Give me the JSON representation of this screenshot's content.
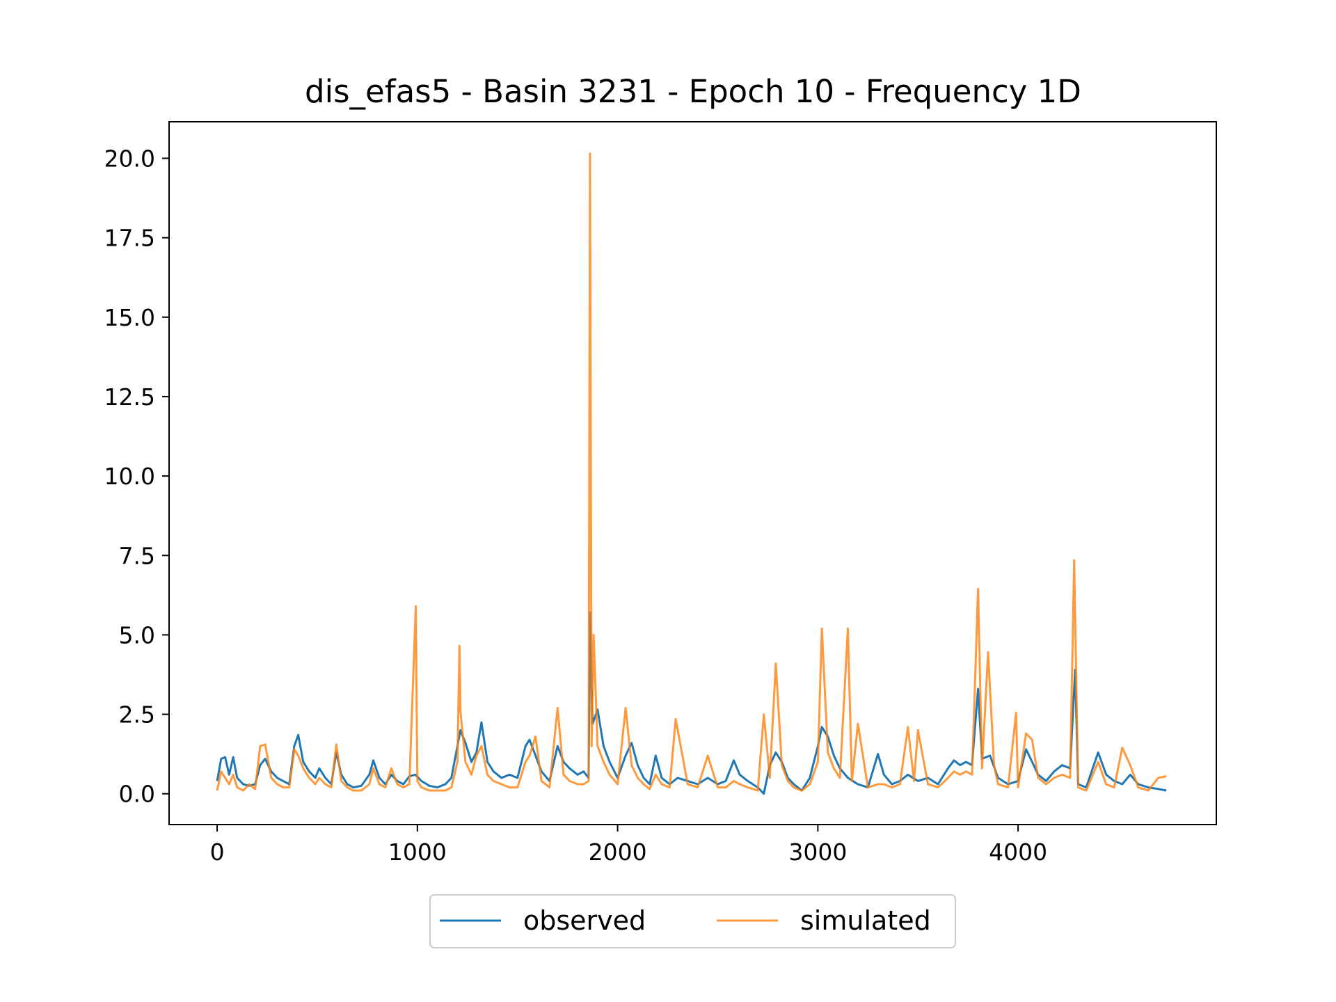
{
  "chart_data": {
    "type": "line",
    "title": "dis_efas5 - Basin 3231 - Epoch 10 - Frequency 1D",
    "xlabel": "",
    "ylabel": "",
    "xlim": [
      -240,
      4990
    ],
    "ylim": [
      -0.97,
      21.15
    ],
    "xticks": [
      0,
      1000,
      2000,
      3000,
      4000
    ],
    "xtick_labels": [
      "0",
      "1000",
      "2000",
      "3000",
      "4000"
    ],
    "yticks": [
      0,
      2.5,
      5,
      7.5,
      10,
      12.5,
      15,
      17.5,
      20
    ],
    "ytick_labels": [
      "0.0",
      "2.5",
      "5.0",
      "7.5",
      "10.0",
      "12.5",
      "15.0",
      "17.5",
      "20.0"
    ],
    "grid": false,
    "legend": {
      "placement": "bottom-center-outside",
      "columns": 2
    },
    "series": [
      {
        "name": "observed",
        "color": "#1f77b4",
        "points": [
          [
            0,
            0.4
          ],
          [
            20,
            1.1
          ],
          [
            40,
            1.15
          ],
          [
            60,
            0.6
          ],
          [
            80,
            1.15
          ],
          [
            100,
            0.5
          ],
          [
            130,
            0.3
          ],
          [
            160,
            0.25
          ],
          [
            190,
            0.3
          ],
          [
            215,
            0.9
          ],
          [
            240,
            1.1
          ],
          [
            270,
            0.7
          ],
          [
            300,
            0.5
          ],
          [
            330,
            0.4
          ],
          [
            360,
            0.3
          ],
          [
            385,
            1.5
          ],
          [
            405,
            1.85
          ],
          [
            430,
            1.0
          ],
          [
            460,
            0.7
          ],
          [
            490,
            0.5
          ],
          [
            510,
            0.8
          ],
          [
            540,
            0.5
          ],
          [
            570,
            0.3
          ],
          [
            595,
            1.3
          ],
          [
            620,
            0.6
          ],
          [
            650,
            0.3
          ],
          [
            680,
            0.2
          ],
          [
            720,
            0.25
          ],
          [
            760,
            0.6
          ],
          [
            780,
            1.05
          ],
          [
            810,
            0.5
          ],
          [
            840,
            0.3
          ],
          [
            870,
            0.6
          ],
          [
            900,
            0.4
          ],
          [
            930,
            0.3
          ],
          [
            960,
            0.55
          ],
          [
            990,
            0.6
          ],
          [
            1020,
            0.4
          ],
          [
            1060,
            0.25
          ],
          [
            1100,
            0.2
          ],
          [
            1140,
            0.3
          ],
          [
            1170,
            0.5
          ],
          [
            1200,
            1.5
          ],
          [
            1215,
            2.0
          ],
          [
            1240,
            1.6
          ],
          [
            1270,
            1.0
          ],
          [
            1295,
            1.3
          ],
          [
            1320,
            2.25
          ],
          [
            1350,
            1.0
          ],
          [
            1380,
            0.7
          ],
          [
            1420,
            0.5
          ],
          [
            1460,
            0.6
          ],
          [
            1500,
            0.5
          ],
          [
            1540,
            1.5
          ],
          [
            1560,
            1.7
          ],
          [
            1590,
            1.2
          ],
          [
            1620,
            0.7
          ],
          [
            1660,
            0.4
          ],
          [
            1700,
            1.5
          ],
          [
            1730,
            1.0
          ],
          [
            1760,
            0.8
          ],
          [
            1800,
            0.6
          ],
          [
            1830,
            0.7
          ],
          [
            1855,
            0.5
          ],
          [
            1862,
            5.7
          ],
          [
            1875,
            2.2
          ],
          [
            1900,
            2.65
          ],
          [
            1930,
            1.5
          ],
          [
            1960,
            1.0
          ],
          [
            2000,
            0.5
          ],
          [
            2040,
            1.2
          ],
          [
            2070,
            1.6
          ],
          [
            2100,
            0.9
          ],
          [
            2130,
            0.5
          ],
          [
            2160,
            0.3
          ],
          [
            2190,
            1.2
          ],
          [
            2220,
            0.5
          ],
          [
            2260,
            0.3
          ],
          [
            2300,
            0.5
          ],
          [
            2350,
            0.4
          ],
          [
            2400,
            0.3
          ],
          [
            2450,
            0.5
          ],
          [
            2500,
            0.3
          ],
          [
            2540,
            0.4
          ],
          [
            2580,
            1.05
          ],
          [
            2610,
            0.6
          ],
          [
            2650,
            0.4
          ],
          [
            2700,
            0.2
          ],
          [
            2730,
            0.0
          ],
          [
            2760,
            0.9
          ],
          [
            2790,
            1.3
          ],
          [
            2820,
            1.0
          ],
          [
            2850,
            0.5
          ],
          [
            2880,
            0.3
          ],
          [
            2920,
            0.1
          ],
          [
            2960,
            0.5
          ],
          [
            3000,
            1.5
          ],
          [
            3020,
            2.1
          ],
          [
            3050,
            1.8
          ],
          [
            3080,
            1.2
          ],
          [
            3110,
            0.8
          ],
          [
            3150,
            0.5
          ],
          [
            3200,
            0.3
          ],
          [
            3250,
            0.2
          ],
          [
            3300,
            1.25
          ],
          [
            3330,
            0.6
          ],
          [
            3370,
            0.3
          ],
          [
            3410,
            0.4
          ],
          [
            3450,
            0.6
          ],
          [
            3500,
            0.4
          ],
          [
            3550,
            0.5
          ],
          [
            3600,
            0.3
          ],
          [
            3650,
            0.8
          ],
          [
            3680,
            1.05
          ],
          [
            3710,
            0.9
          ],
          [
            3740,
            1.0
          ],
          [
            3770,
            0.9
          ],
          [
            3800,
            3.3
          ],
          [
            3820,
            1.1
          ],
          [
            3860,
            1.2
          ],
          [
            3900,
            0.5
          ],
          [
            3950,
            0.3
          ],
          [
            4000,
            0.4
          ],
          [
            4040,
            1.4
          ],
          [
            4070,
            1.0
          ],
          [
            4100,
            0.6
          ],
          [
            4140,
            0.4
          ],
          [
            4180,
            0.7
          ],
          [
            4220,
            0.9
          ],
          [
            4260,
            0.8
          ],
          [
            4285,
            3.9
          ],
          [
            4300,
            0.3
          ],
          [
            4340,
            0.2
          ],
          [
            4400,
            1.3
          ],
          [
            4440,
            0.6
          ],
          [
            4480,
            0.4
          ],
          [
            4520,
            0.3
          ],
          [
            4560,
            0.6
          ],
          [
            4600,
            0.3
          ],
          [
            4650,
            0.2
          ],
          [
            4700,
            0.15
          ],
          [
            4740,
            0.1
          ]
        ]
      },
      {
        "name": "simulated",
        "color": "#ff7f0e",
        "points": [
          [
            0,
            0.1
          ],
          [
            20,
            0.7
          ],
          [
            40,
            0.5
          ],
          [
            60,
            0.3
          ],
          [
            80,
            0.6
          ],
          [
            100,
            0.2
          ],
          [
            130,
            0.1
          ],
          [
            160,
            0.3
          ],
          [
            190,
            0.15
          ],
          [
            215,
            1.5
          ],
          [
            240,
            1.55
          ],
          [
            270,
            0.5
          ],
          [
            300,
            0.3
          ],
          [
            330,
            0.2
          ],
          [
            360,
            0.2
          ],
          [
            385,
            1.4
          ],
          [
            405,
            1.2
          ],
          [
            430,
            0.8
          ],
          [
            460,
            0.5
          ],
          [
            490,
            0.3
          ],
          [
            510,
            0.5
          ],
          [
            540,
            0.3
          ],
          [
            570,
            0.2
          ],
          [
            595,
            1.55
          ],
          [
            620,
            0.4
          ],
          [
            650,
            0.2
          ],
          [
            680,
            0.1
          ],
          [
            720,
            0.1
          ],
          [
            760,
            0.3
          ],
          [
            780,
            0.8
          ],
          [
            810,
            0.3
          ],
          [
            840,
            0.2
          ],
          [
            870,
            0.8
          ],
          [
            900,
            0.3
          ],
          [
            930,
            0.2
          ],
          [
            960,
            0.3
          ],
          [
            992,
            5.9
          ],
          [
            1000,
            0.4
          ],
          [
            1020,
            0.2
          ],
          [
            1060,
            0.1
          ],
          [
            1100,
            0.1
          ],
          [
            1140,
            0.1
          ],
          [
            1170,
            0.2
          ],
          [
            1200,
            1.0
          ],
          [
            1210,
            4.65
          ],
          [
            1215,
            2.6
          ],
          [
            1240,
            1.0
          ],
          [
            1270,
            0.6
          ],
          [
            1295,
            1.2
          ],
          [
            1320,
            1.5
          ],
          [
            1350,
            0.6
          ],
          [
            1380,
            0.4
          ],
          [
            1420,
            0.3
          ],
          [
            1460,
            0.2
          ],
          [
            1500,
            0.2
          ],
          [
            1540,
            1.0
          ],
          [
            1560,
            1.2
          ],
          [
            1590,
            1.8
          ],
          [
            1620,
            0.4
          ],
          [
            1660,
            0.2
          ],
          [
            1700,
            2.7
          ],
          [
            1730,
            0.6
          ],
          [
            1760,
            0.4
          ],
          [
            1800,
            0.3
          ],
          [
            1830,
            0.3
          ],
          [
            1855,
            0.4
          ],
          [
            1862,
            20.15
          ],
          [
            1870,
            1.5
          ],
          [
            1880,
            5.0
          ],
          [
            1900,
            1.5
          ],
          [
            1930,
            1.0
          ],
          [
            1960,
            0.6
          ],
          [
            2000,
            0.3
          ],
          [
            2040,
            2.7
          ],
          [
            2070,
            0.9
          ],
          [
            2100,
            0.5
          ],
          [
            2130,
            0.3
          ],
          [
            2160,
            0.15
          ],
          [
            2190,
            0.6
          ],
          [
            2220,
            0.3
          ],
          [
            2260,
            0.2
          ],
          [
            2290,
            2.35
          ],
          [
            2350,
            0.3
          ],
          [
            2400,
            0.2
          ],
          [
            2450,
            1.2
          ],
          [
            2500,
            0.2
          ],
          [
            2540,
            0.2
          ],
          [
            2580,
            0.4
          ],
          [
            2610,
            0.3
          ],
          [
            2650,
            0.2
          ],
          [
            2700,
            0.1
          ],
          [
            2730,
            2.5
          ],
          [
            2760,
            0.5
          ],
          [
            2790,
            4.1
          ],
          [
            2820,
            0.9
          ],
          [
            2850,
            0.4
          ],
          [
            2880,
            0.2
          ],
          [
            2920,
            0.1
          ],
          [
            2960,
            0.3
          ],
          [
            3000,
            1.0
          ],
          [
            3020,
            5.2
          ],
          [
            3050,
            1.3
          ],
          [
            3080,
            0.8
          ],
          [
            3110,
            0.5
          ],
          [
            3150,
            5.2
          ],
          [
            3170,
            0.4
          ],
          [
            3200,
            2.2
          ],
          [
            3250,
            0.2
          ],
          [
            3300,
            0.3
          ],
          [
            3330,
            0.3
          ],
          [
            3370,
            0.2
          ],
          [
            3410,
            0.3
          ],
          [
            3450,
            2.1
          ],
          [
            3480,
            0.4
          ],
          [
            3500,
            2.0
          ],
          [
            3550,
            0.3
          ],
          [
            3600,
            0.2
          ],
          [
            3650,
            0.5
          ],
          [
            3680,
            0.7
          ],
          [
            3710,
            0.6
          ],
          [
            3740,
            0.7
          ],
          [
            3770,
            0.6
          ],
          [
            3800,
            6.45
          ],
          [
            3820,
            0.8
          ],
          [
            3850,
            4.45
          ],
          [
            3880,
            0.9
          ],
          [
            3900,
            0.3
          ],
          [
            3950,
            0.2
          ],
          [
            3990,
            2.55
          ],
          [
            4000,
            0.2
          ],
          [
            4040,
            1.9
          ],
          [
            4070,
            1.7
          ],
          [
            4100,
            0.5
          ],
          [
            4140,
            0.3
          ],
          [
            4180,
            0.5
          ],
          [
            4220,
            0.6
          ],
          [
            4260,
            0.5
          ],
          [
            4280,
            7.35
          ],
          [
            4300,
            0.2
          ],
          [
            4340,
            0.1
          ],
          [
            4400,
            1.0
          ],
          [
            4440,
            0.3
          ],
          [
            4480,
            0.2
          ],
          [
            4520,
            1.45
          ],
          [
            4560,
            0.9
          ],
          [
            4600,
            0.2
          ],
          [
            4650,
            0.1
          ],
          [
            4700,
            0.5
          ],
          [
            4740,
            0.55
          ]
        ]
      }
    ]
  }
}
